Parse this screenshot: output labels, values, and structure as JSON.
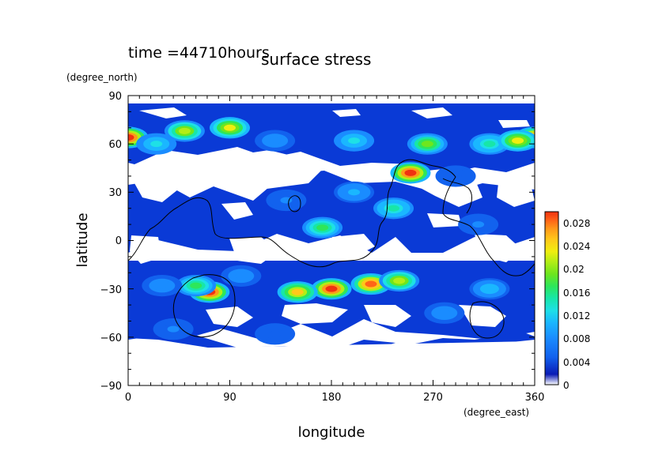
{
  "chart_data": {
    "type": "heatmap",
    "time_label": "time =44710hours",
    "title": "surface stress",
    "xlabel": "longitude",
    "ylabel": "latitude",
    "x_unit": "(degree_east)",
    "y_unit": "(degree_north)",
    "xlim": [
      0,
      360
    ],
    "ylim": [
      -90,
      90
    ],
    "x_ticks": [
      "0",
      "90",
      "180",
      "270",
      "360"
    ],
    "y_ticks": [
      "90",
      "60",
      "30",
      "0",
      "−30",
      "−60",
      "−90"
    ],
    "x_tick_values": [
      0,
      90,
      180,
      270,
      360
    ],
    "y_tick_values": [
      90,
      60,
      30,
      0,
      -30,
      -60,
      -90
    ],
    "colorbar": {
      "min": 0,
      "max": 0.03,
      "tick_labels": [
        "0.028",
        "0.024",
        "0.02",
        "0.016",
        "0.012",
        "0.008",
        "0.004",
        "0"
      ],
      "tick_values": [
        0.028,
        0.024,
        0.02,
        0.016,
        0.012,
        0.008,
        0.004,
        0
      ],
      "colors": [
        "#ffffff",
        "#0a1bb5",
        "#0a3ad6",
        "#1262ee",
        "#1a8cff",
        "#1ab7ff",
        "#1ee0e6",
        "#18e6a8",
        "#2ee65a",
        "#6ee61e",
        "#b2ee16",
        "#f0ee10",
        "#ffc81a",
        "#ff9a1a",
        "#ff6418",
        "#f03210"
      ]
    },
    "blobs": [
      {
        "lon": 0,
        "lat": 64,
        "value": 0.03
      },
      {
        "lon": 360,
        "lat": 64,
        "value": 0.028
      },
      {
        "lon": 50,
        "lat": 68,
        "value": 0.02
      },
      {
        "lon": 90,
        "lat": 70,
        "value": 0.022
      },
      {
        "lon": 25,
        "lat": 60,
        "value": 0.011
      },
      {
        "lon": 130,
        "lat": 62,
        "value": 0.008
      },
      {
        "lon": 200,
        "lat": 62,
        "value": 0.012
      },
      {
        "lon": 250,
        "lat": 42,
        "value": 0.03
      },
      {
        "lon": 265,
        "lat": 60,
        "value": 0.018
      },
      {
        "lon": 320,
        "lat": 60,
        "value": 0.014
      },
      {
        "lon": 345,
        "lat": 62,
        "value": 0.022
      },
      {
        "lon": 235,
        "lat": 20,
        "value": 0.014
      },
      {
        "lon": 172,
        "lat": 8,
        "value": 0.016
      },
      {
        "lon": 140,
        "lat": 25,
        "value": 0.007
      },
      {
        "lon": 200,
        "lat": 30,
        "value": 0.009
      },
      {
        "lon": 310,
        "lat": 10,
        "value": 0.007
      },
      {
        "lon": 180,
        "lat": -30,
        "value": 0.03
      },
      {
        "lon": 215,
        "lat": -27,
        "value": 0.028
      },
      {
        "lon": 150,
        "lat": -32,
        "value": 0.024
      },
      {
        "lon": 240,
        "lat": -25,
        "value": 0.02
      },
      {
        "lon": 72,
        "lat": -32,
        "value": 0.03
      },
      {
        "lon": 60,
        "lat": -28,
        "value": 0.016
      },
      {
        "lon": 100,
        "lat": -22,
        "value": 0.008
      },
      {
        "lon": 30,
        "lat": -28,
        "value": 0.008
      },
      {
        "lon": 280,
        "lat": -45,
        "value": 0.008
      },
      {
        "lon": 320,
        "lat": -30,
        "value": 0.01
      },
      {
        "lon": 40,
        "lat": -55,
        "value": 0.007
      },
      {
        "lon": 130,
        "lat": -58,
        "value": 0.006
      },
      {
        "lon": 290,
        "lat": 40,
        "value": 0.006
      }
    ]
  }
}
